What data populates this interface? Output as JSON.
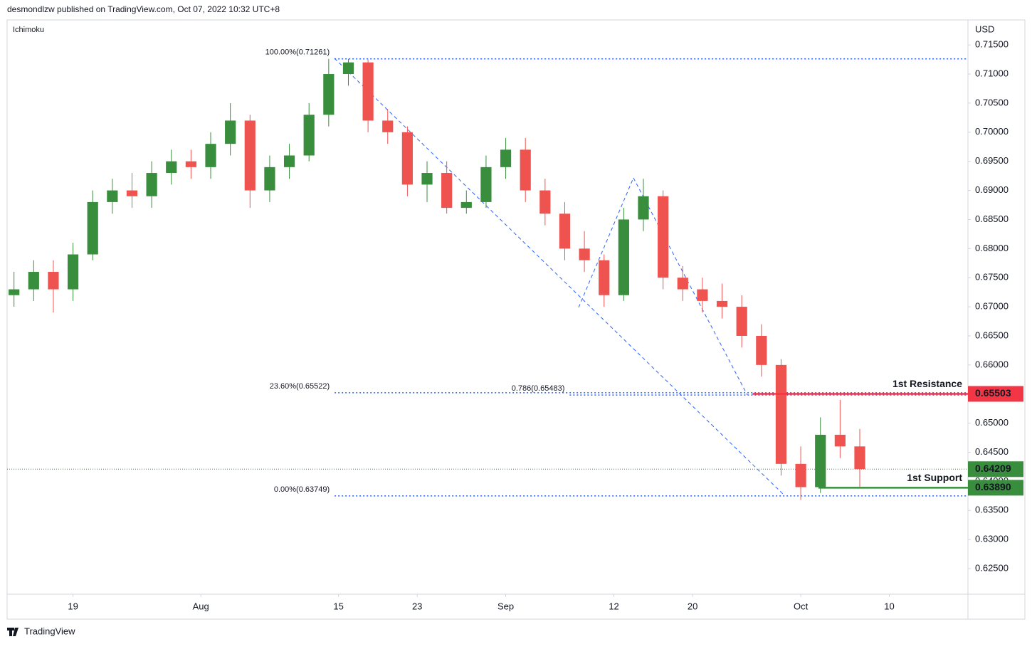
{
  "header": {
    "publisher": "desmondlzw published on TradingView.com, Oct 07, 2022 10:32 UTC+8",
    "indicator": "Ichimoku",
    "currency": "USD",
    "brand": "TradingView"
  },
  "chart_data": {
    "type": "candlestick",
    "up_color": "#388e3c",
    "down_color": "#ef5350",
    "x": [
      194,
      196,
      198,
      200,
      202,
      204,
      206,
      208,
      210,
      212,
      214,
      216,
      218,
      220,
      222,
      224,
      226,
      228,
      230,
      232,
      234,
      236,
      238,
      240,
      242,
      244,
      246,
      248,
      250,
      252,
      254,
      256,
      258,
      260,
      262,
      264,
      266,
      268,
      270,
      272,
      274,
      276,
      278,
      280
    ],
    "open": [
      0.672,
      0.673,
      0.676,
      0.673,
      0.679,
      0.688,
      0.69,
      0.689,
      0.693,
      0.695,
      0.694,
      0.698,
      0.702,
      0.69,
      0.694,
      0.696,
      0.703,
      0.71,
      0.712,
      0.702,
      0.7,
      0.691,
      0.693,
      0.687,
      0.688,
      0.694,
      0.697,
      0.69,
      0.686,
      0.68,
      0.678,
      0.672,
      0.685,
      0.689,
      0.675,
      0.673,
      0.671,
      0.67,
      0.665,
      0.66,
      0.643,
      0.639,
      0.648,
      0.646
    ],
    "high": [
      0.676,
      0.678,
      0.678,
      0.681,
      0.69,
      0.692,
      0.693,
      0.695,
      0.697,
      0.697,
      0.7,
      0.705,
      0.703,
      0.696,
      0.698,
      0.705,
      0.7126,
      0.7126,
      0.7125,
      0.704,
      0.701,
      0.695,
      0.695,
      0.69,
      0.696,
      0.699,
      0.699,
      0.692,
      0.688,
      0.683,
      0.679,
      0.687,
      0.692,
      0.69,
      0.677,
      0.675,
      0.674,
      0.672,
      0.667,
      0.661,
      0.646,
      0.651,
      0.654,
      0.649
    ],
    "low": [
      0.67,
      0.671,
      0.669,
      0.671,
      0.678,
      0.686,
      0.687,
      0.687,
      0.691,
      0.692,
      0.692,
      0.696,
      0.687,
      0.688,
      0.692,
      0.695,
      0.701,
      0.708,
      0.7,
      0.698,
      0.689,
      0.688,
      0.686,
      0.686,
      0.687,
      0.692,
      0.688,
      0.684,
      0.678,
      0.676,
      0.67,
      0.671,
      0.683,
      0.673,
      0.671,
      0.669,
      0.668,
      0.663,
      0.658,
      0.641,
      0.6368,
      0.638,
      0.644,
      0.639
    ],
    "close": [
      0.673,
      0.676,
      0.673,
      0.679,
      0.688,
      0.69,
      0.689,
      0.693,
      0.695,
      0.694,
      0.698,
      0.702,
      0.69,
      0.694,
      0.696,
      0.703,
      0.71,
      0.712,
      0.702,
      0.7,
      0.691,
      0.693,
      0.687,
      0.688,
      0.694,
      0.697,
      0.69,
      0.686,
      0.68,
      0.678,
      0.672,
      0.685,
      0.689,
      0.675,
      0.673,
      0.671,
      0.67,
      0.665,
      0.66,
      0.643,
      0.639,
      0.648,
      0.646,
      0.6421
    ],
    "xlim": [
      193.3,
      291
    ],
    "xticks": [
      {
        "value": 200,
        "label": "19"
      },
      {
        "value": 213,
        "label": "Aug"
      },
      {
        "value": 227,
        "label": "15"
      },
      {
        "value": 235,
        "label": "23"
      },
      {
        "value": 244,
        "label": "Sep"
      },
      {
        "value": 255,
        "label": "12"
      },
      {
        "value": 263,
        "label": "20"
      },
      {
        "value": 274,
        "label": "Oct"
      },
      {
        "value": 283,
        "label": "10"
      }
    ],
    "ylim": [
      0.6206,
      0.7193
    ],
    "yticks": [
      {
        "value": 0.625,
        "label": "0.62500"
      },
      {
        "value": 0.63,
        "label": "0.63000"
      },
      {
        "value": 0.635,
        "label": "0.63500"
      },
      {
        "value": 0.64,
        "label": "0.64000"
      },
      {
        "value": 0.645,
        "label": "0.64500"
      },
      {
        "value": 0.65,
        "label": "0.65000"
      },
      {
        "value": 0.655,
        "label": "0.65500"
      },
      {
        "value": 0.66,
        "label": "0.66000"
      },
      {
        "value": 0.665,
        "label": "0.66500"
      },
      {
        "value": 0.67,
        "label": "0.67000"
      },
      {
        "value": 0.675,
        "label": "0.67500"
      },
      {
        "value": 0.68,
        "label": "0.68000"
      },
      {
        "value": 0.685,
        "label": "0.68500"
      },
      {
        "value": 0.69,
        "label": "0.69000"
      },
      {
        "value": 0.695,
        "label": "0.69500"
      },
      {
        "value": 0.7,
        "label": "0.70000"
      },
      {
        "value": 0.705,
        "label": "0.70500"
      },
      {
        "value": 0.71,
        "label": "0.71000"
      },
      {
        "value": 0.715,
        "label": "0.71500"
      }
    ],
    "fib_levels": [
      {
        "label": "100.00%(0.71261)",
        "value": 0.71261,
        "x_start": 226.6
      },
      {
        "label": "23.60%(0.65522)",
        "value": 0.65522,
        "x_start": 226.6
      },
      {
        "label": "0.00%(0.63749)",
        "value": 0.63749,
        "x_start": 226.6
      },
      {
        "label": "0.786(0.65483)",
        "value": 0.65483,
        "x_start": 250.5
      }
    ],
    "levels": [
      {
        "name": "1st Resistance",
        "value": 0.65503,
        "value_label": "0.65503",
        "color": "#f23645",
        "x_start": 269.1
      },
      {
        "name": "1st Support",
        "value": 0.6389,
        "value_label": "0.63890",
        "color": "#388e3c",
        "x_start": 275.8
      }
    ],
    "last_price": {
      "value": 0.64209,
      "value_label": "0.64209",
      "color": "#388e3c"
    }
  }
}
